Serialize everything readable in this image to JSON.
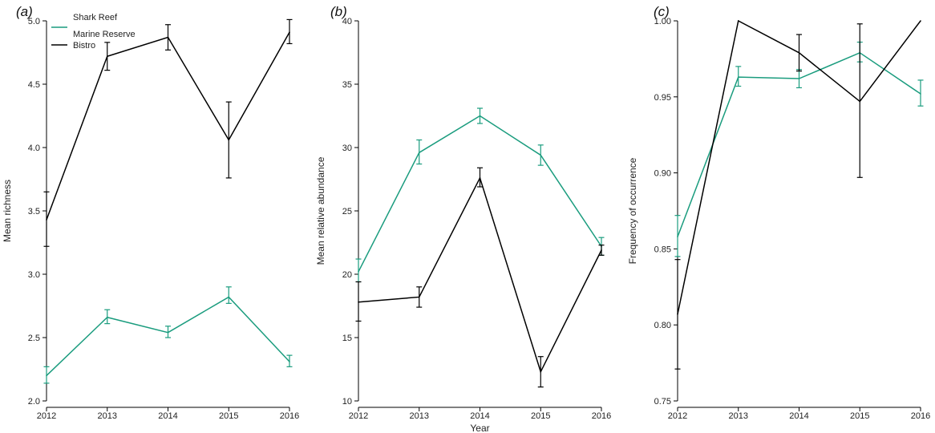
{
  "colors": {
    "shark_reef": "#1a9c7e",
    "bistro": "#000000",
    "axis": "#000000"
  },
  "legend": {
    "entries": [
      "Shark Reef Marine Reserve",
      "Bistro"
    ],
    "lines": [
      [
        "Shark Reef",
        "Marine Reserve"
      ],
      [
        "Bistro"
      ]
    ],
    "placement": "top-left of panel (a)"
  },
  "shared": {
    "xlabel": "Year"
  },
  "chart_data": [
    {
      "type": "line",
      "panel_label": "(a)",
      "title": "",
      "xlabel": "",
      "ylabel": "Mean richness",
      "categories": [
        "2012",
        "2013",
        "2014",
        "2015",
        "2016"
      ],
      "ylim": [
        2.0,
        5.0
      ],
      "yticks": [
        "2.0",
        "2.5",
        "3.0",
        "3.5",
        "4.0",
        "4.5",
        "5.0"
      ],
      "grid": false,
      "series": [
        {
          "name": "Bistro",
          "values": [
            3.43,
            4.72,
            4.87,
            4.06,
            4.91
          ],
          "lower": [
            3.22,
            4.61,
            4.77,
            3.76,
            4.82
          ],
          "upper": [
            3.65,
            4.83,
            4.97,
            4.36,
            5.01
          ]
        },
        {
          "name": "Shark Reef Marine Reserve",
          "values": [
            2.2,
            2.66,
            2.54,
            2.82,
            2.31
          ],
          "lower": [
            2.14,
            2.61,
            2.5,
            2.77,
            2.27
          ],
          "upper": [
            2.27,
            2.72,
            2.59,
            2.9,
            2.36
          ]
        }
      ]
    },
    {
      "type": "line",
      "panel_label": "(b)",
      "title": "",
      "xlabel": "Year",
      "ylabel": "Mean relative abundance",
      "categories": [
        "2012",
        "2013",
        "2014",
        "2015",
        "2016"
      ],
      "ylim": [
        10,
        40
      ],
      "yticks": [
        "10",
        "15",
        "20",
        "25",
        "30",
        "35",
        "40"
      ],
      "grid": false,
      "series": [
        {
          "name": "Shark Reef Marine Reserve",
          "values": [
            20.2,
            29.6,
            32.5,
            29.4,
            22.2
          ],
          "lower": [
            19.4,
            28.7,
            31.9,
            28.6,
            21.5
          ],
          "upper": [
            21.2,
            30.6,
            33.1,
            30.2,
            22.9
          ]
        },
        {
          "name": "Bistro",
          "values": [
            17.8,
            18.2,
            27.6,
            12.3,
            21.9
          ],
          "lower": [
            16.3,
            17.4,
            26.9,
            11.1,
            21.5
          ],
          "upper": [
            19.4,
            19.0,
            28.4,
            13.5,
            22.3
          ]
        }
      ]
    },
    {
      "type": "line",
      "panel_label": "(c)",
      "title": "",
      "xlabel": "",
      "ylabel": "Frequency of occurrence",
      "categories": [
        "2012",
        "2013",
        "2014",
        "2015",
        "2016"
      ],
      "ylim": [
        0.75,
        1.0
      ],
      "yticks": [
        "0.75",
        "0.80",
        "0.85",
        "0.90",
        "0.95",
        "1.00"
      ],
      "grid": false,
      "series": [
        {
          "name": "Shark Reef Marine Reserve",
          "values": [
            0.858,
            0.963,
            0.962,
            0.979,
            0.952
          ],
          "lower": [
            0.845,
            0.957,
            0.956,
            0.973,
            0.944
          ],
          "upper": [
            0.872,
            0.97,
            0.968,
            0.986,
            0.961
          ]
        },
        {
          "name": "Bistro",
          "values": [
            0.807,
            1.0,
            0.979,
            0.947,
            1.0
          ],
          "lower": [
            0.771,
            1.0,
            0.967,
            0.897,
            1.0
          ],
          "upper": [
            0.843,
            1.0,
            0.991,
            0.998,
            1.0
          ]
        }
      ]
    }
  ]
}
